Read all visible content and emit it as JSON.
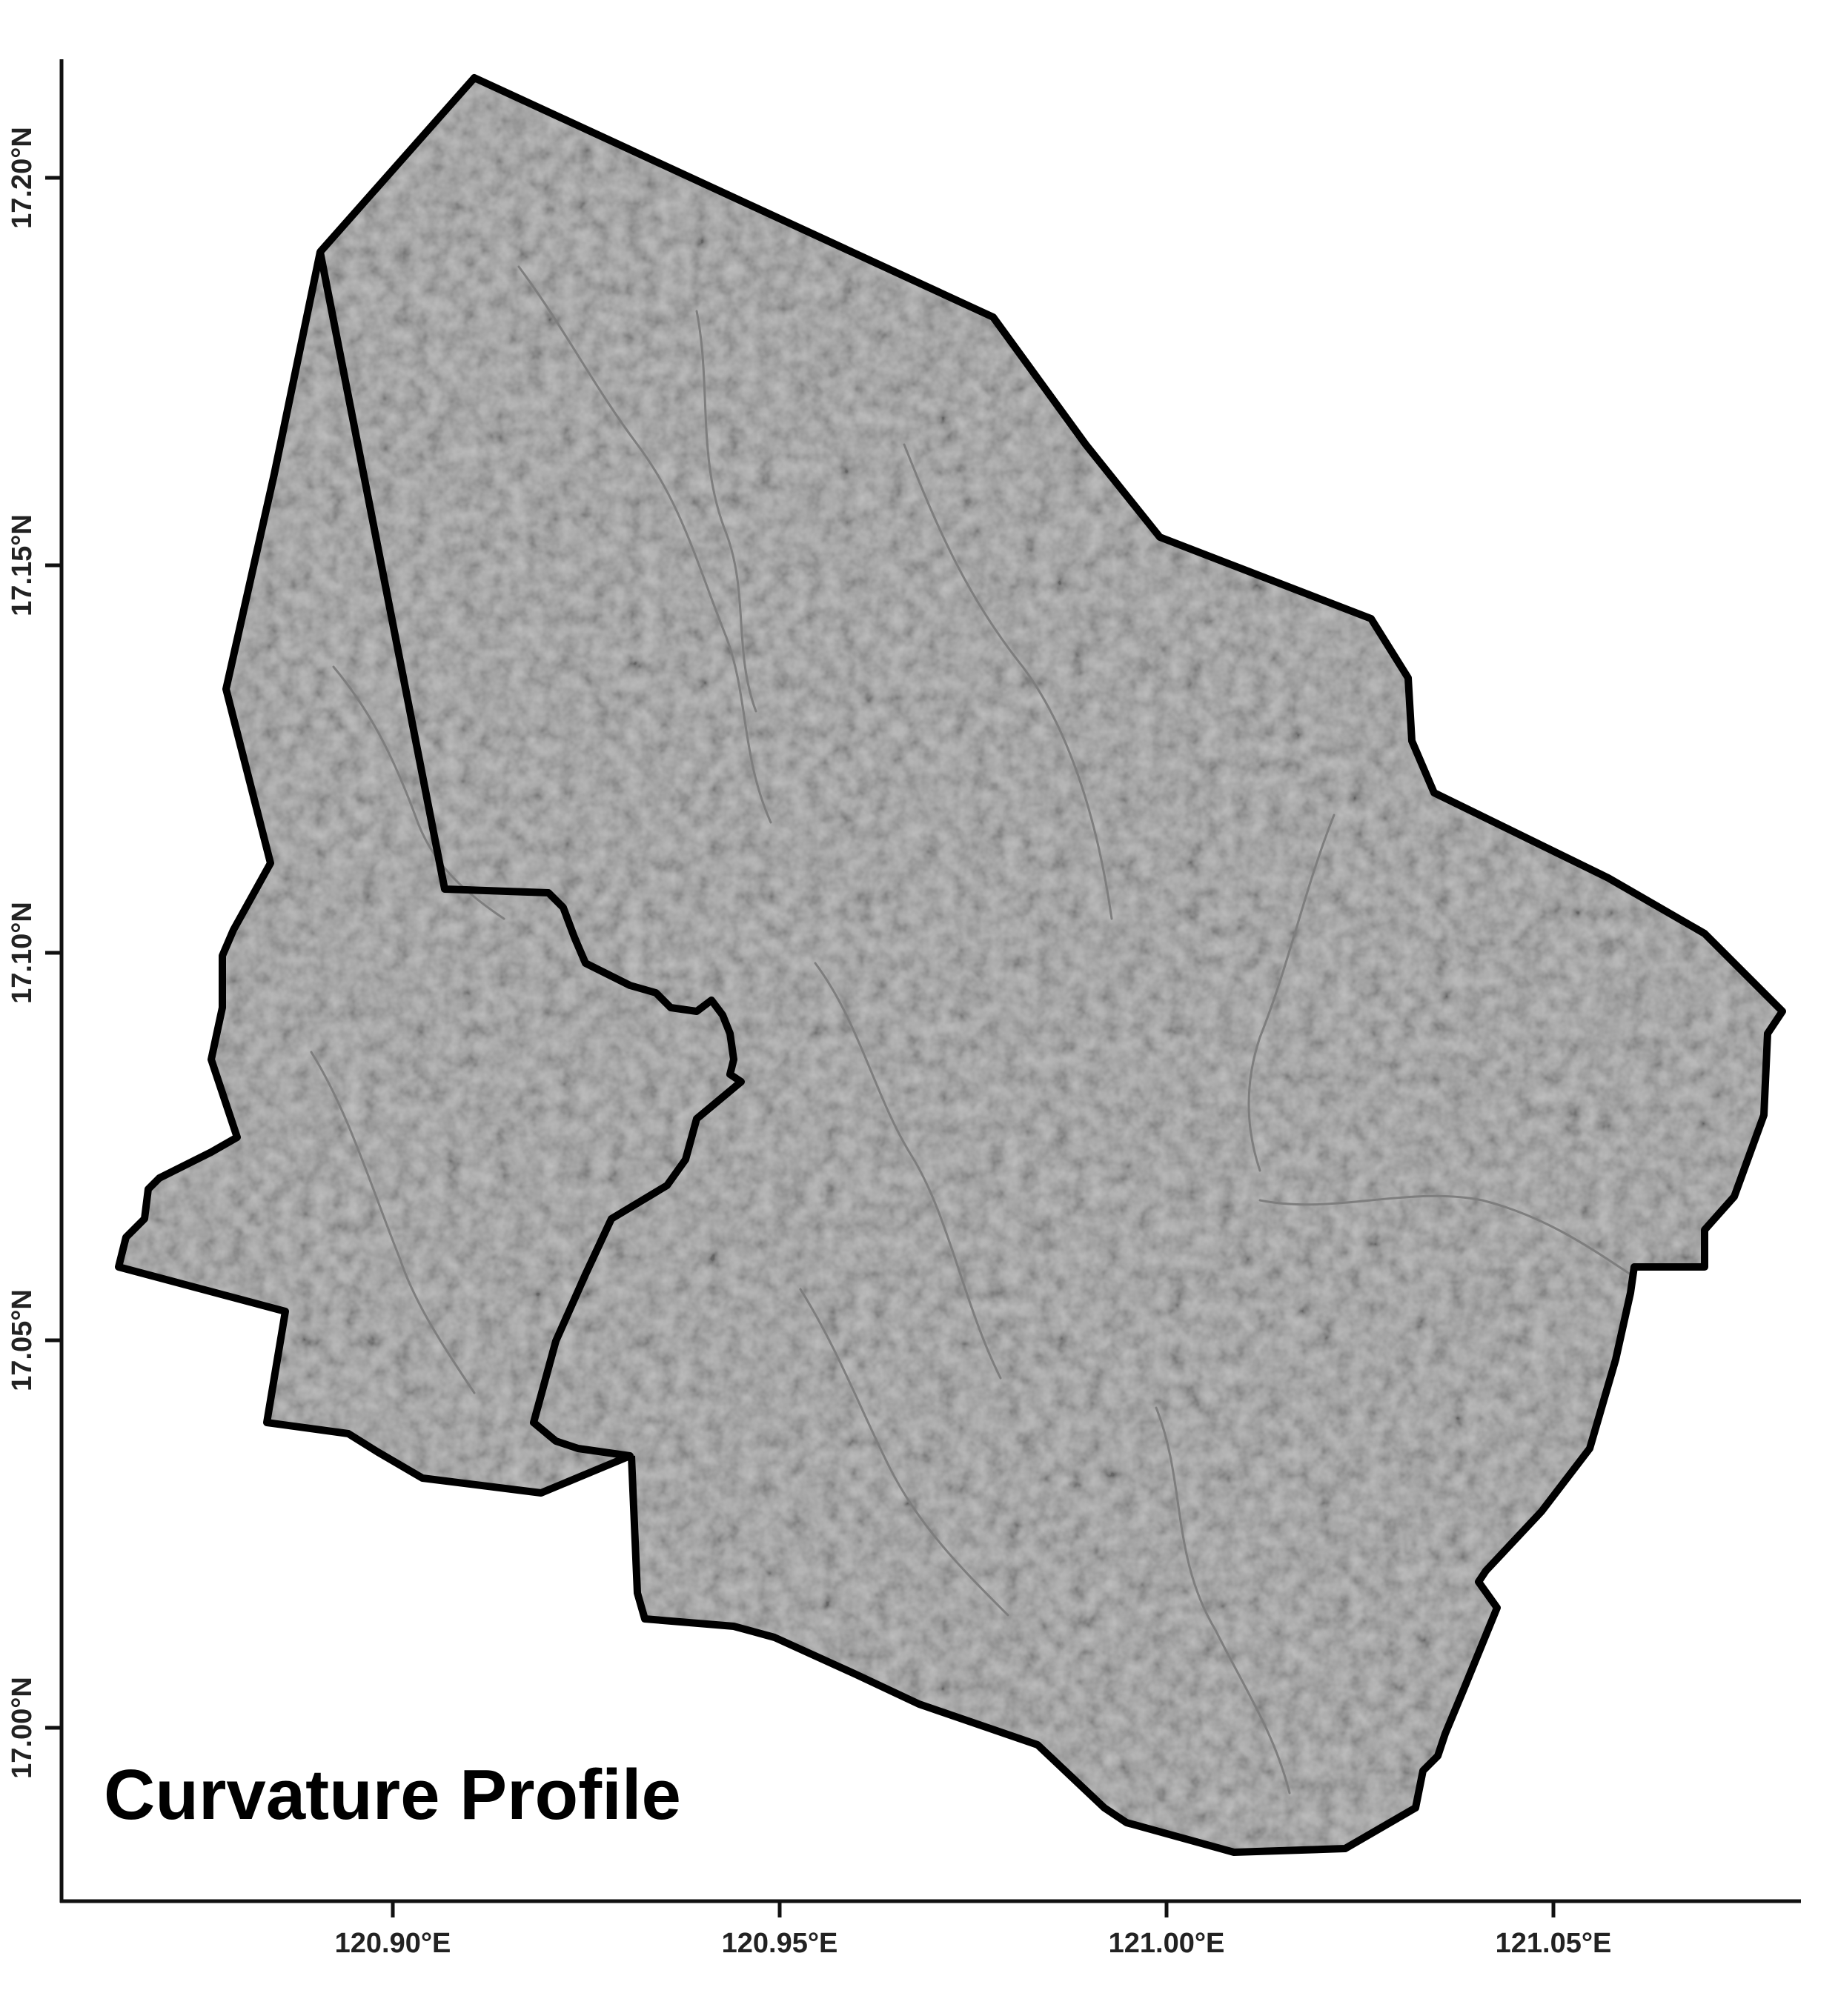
{
  "map": {
    "title": "Curvature Profile",
    "x_axis": {
      "ticks": [
        "120.90°E",
        "120.95°E",
        "121.00°E",
        "121.05°E"
      ]
    },
    "y_axis": {
      "ticks": [
        "17.20°N",
        "17.15°N",
        "17.10°N",
        "17.05°N",
        "17.00°N"
      ]
    },
    "regions": [
      {
        "id": "west-municipality"
      },
      {
        "id": "east-municipality"
      }
    ],
    "colors": {
      "fill": "#9a9a9a",
      "texture_dark": "#7e7e7e",
      "texture_light": "#b0b0b0",
      "boundary": "#000000",
      "axis": "#111111"
    }
  }
}
